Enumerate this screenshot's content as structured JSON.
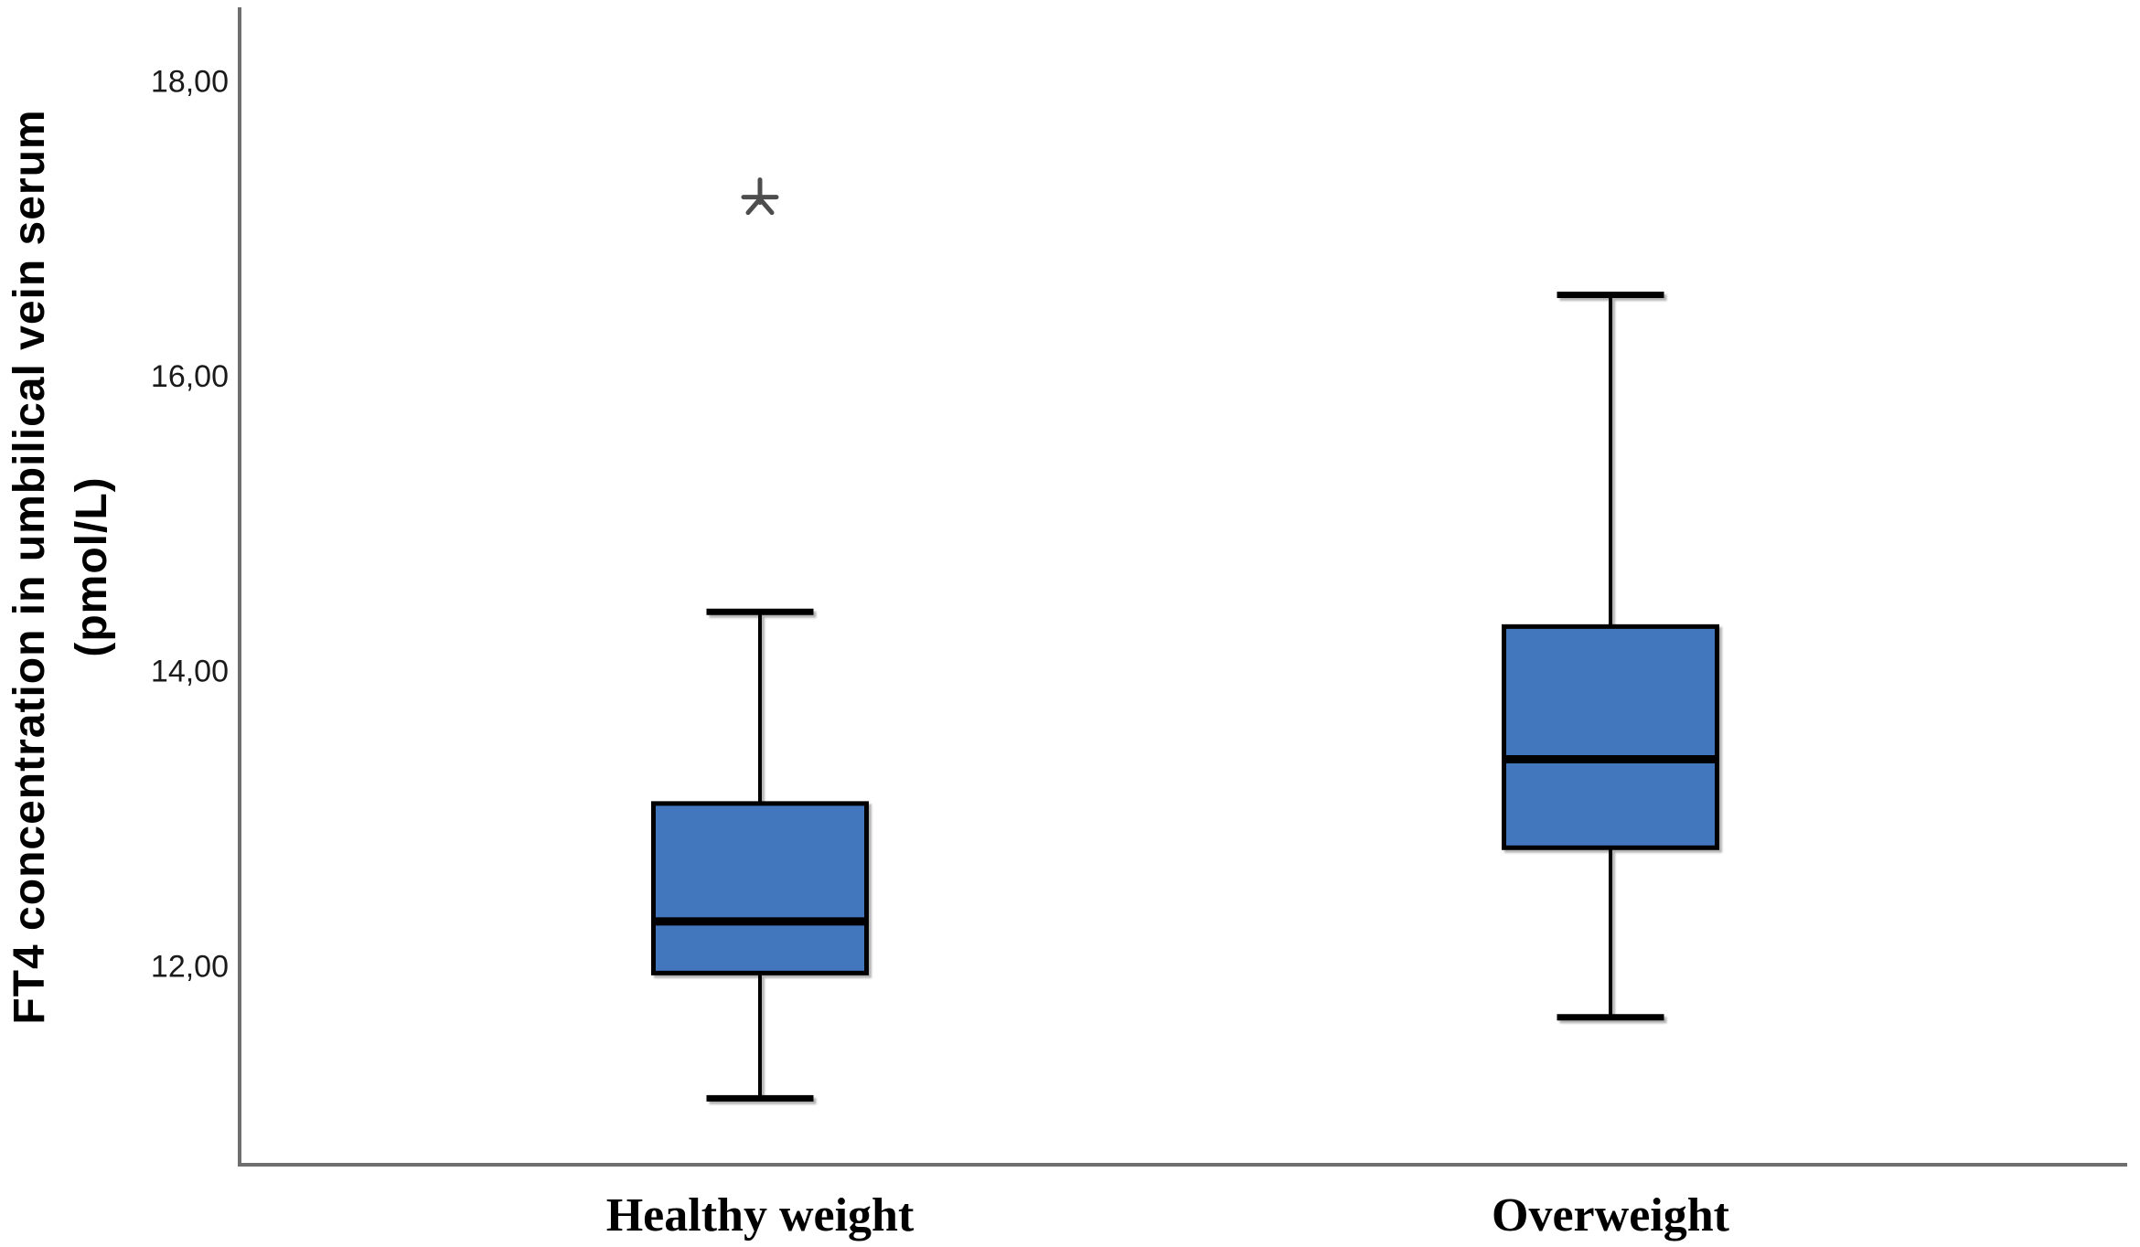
{
  "chart_data": {
    "type": "boxplot",
    "title": "",
    "ylabel_lines": [
      "FT4 concentration in umbilical vein serum",
      "(pmol/L)"
    ],
    "xlabel": "",
    "categories": [
      "Healthy weight",
      "Overweight"
    ],
    "series": [
      {
        "category": "Healthy weight",
        "whisker_low": 11.1,
        "q1": 11.95,
        "median": 12.3,
        "q3": 13.1,
        "whisker_high": 14.4,
        "outliers": [
          17.2
        ],
        "outlier_marker": "*"
      },
      {
        "category": "Overweight",
        "whisker_low": 11.65,
        "q1": 12.8,
        "median": 13.4,
        "q3": 14.3,
        "whisker_high": 16.55,
        "outliers": [],
        "outlier_marker": "*"
      }
    ],
    "y_axis": {
      "ticks": [
        12,
        14,
        16,
        18
      ],
      "tick_labels": [
        "12,00",
        "14,00",
        "16,00",
        "18,00"
      ],
      "ylim": [
        10.65,
        18.5
      ],
      "decimal_separator": ","
    },
    "x_axis": {
      "grid": false,
      "tick_marks": false
    },
    "legend": "none",
    "colors": {
      "box_fill": "#4377bd",
      "box_border": "#000000",
      "median": "#000000",
      "whisker": "#000000",
      "axis": "#6e6e6e",
      "tick_label": "#1a1a1a",
      "outlier": "#4d4d4d",
      "background": "#ffffff"
    }
  }
}
